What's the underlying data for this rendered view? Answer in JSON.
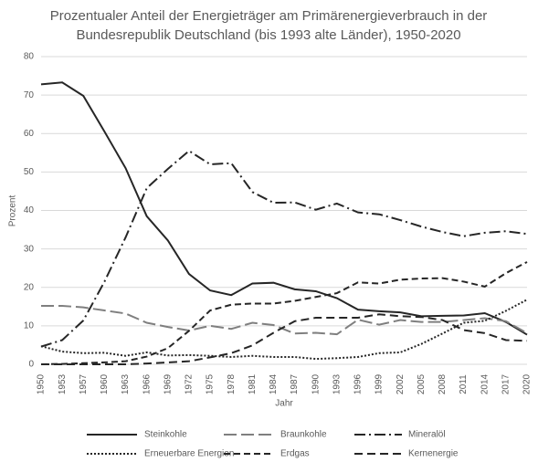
{
  "chart_data": {
    "type": "line",
    "title": [
      "Prozentualer Anteil der Energieträger am Primärenergieverbrauch in der",
      "Bundesrepublik Deutschland (bis 1993 alte Länder), 1950-2020"
    ],
    "x_label": "Jahr",
    "y_label": "Prozent",
    "categories": [
      "1950",
      "1953",
      "1957",
      "1960",
      "1963",
      "1966",
      "1969",
      "1972",
      "1975",
      "1978",
      "1981",
      "1984",
      "1987",
      "1990",
      "1993",
      "1996",
      "1999",
      "2002",
      "2005",
      "2008",
      "2011",
      "2014",
      "2017",
      "2020"
    ],
    "ylim": [
      0,
      80
    ],
    "yticks": [
      0,
      10,
      20,
      30,
      40,
      50,
      60,
      70,
      80
    ],
    "grid": true,
    "series": [
      {
        "name": "Steinkohle",
        "color": "#262626",
        "dash": "none",
        "values": [
          72.8,
          73.3,
          69.8,
          60.5,
          51,
          38.5,
          32.2,
          23.5,
          19.2,
          18,
          21,
          21.2,
          19.5,
          19,
          17.2,
          14.2,
          13.8,
          13.5,
          12.5,
          12.6,
          12.7,
          13.3,
          11,
          7.7
        ]
      },
      {
        "name": "Braunkohle",
        "color": "#7f7f7f",
        "dash": "14 5",
        "values": [
          15.2,
          15.2,
          14.8,
          14,
          13.2,
          10.8,
          9.7,
          8.8,
          10,
          9.2,
          10.8,
          10.2,
          8,
          8.2,
          7.8,
          11.6,
          10.3,
          11.5,
          11,
          11,
          11.5,
          12,
          11.2,
          8.1
        ]
      },
      {
        "name": "Mineralöl",
        "color": "#262626",
        "dash": "12 4 2 4",
        "values": [
          4.6,
          6.3,
          11.4,
          21.5,
          33,
          45.8,
          50.8,
          55.5,
          52,
          52.3,
          44.8,
          42,
          42.1,
          40.2,
          41.8,
          39.5,
          39,
          37.5,
          35.8,
          34.4,
          33.3,
          34.2,
          34.6,
          33.9
        ]
      },
      {
        "name": "Erneuerbare Energien",
        "color": "#262626",
        "dash": "2 2",
        "values": [
          4.7,
          3.3,
          2.9,
          3,
          2.2,
          3.1,
          2.3,
          2.4,
          2.2,
          1.9,
          2.2,
          1.9,
          1.9,
          1.4,
          1.6,
          1.9,
          2.9,
          3.1,
          5.3,
          8,
          10.8,
          11.3,
          13.9,
          16.8
        ]
      },
      {
        "name": "Erdgas",
        "color": "#262626",
        "dash": "7 4",
        "values": [
          0,
          0.1,
          0.3,
          0.5,
          0.8,
          2,
          4.2,
          8.7,
          14,
          15.5,
          15.8,
          15.8,
          16.5,
          17.5,
          18.5,
          21.3,
          21,
          22,
          22.3,
          22.4,
          21.5,
          20.2,
          23.7,
          26.6
        ]
      },
      {
        "name": "Kernenergie",
        "color": "#262626",
        "dash": "9 5",
        "values": [
          0,
          0,
          0,
          0,
          0,
          0.2,
          0.5,
          0.8,
          1.8,
          2.9,
          4.9,
          8.2,
          11.2,
          12.1,
          12.1,
          12.1,
          13,
          12.5,
          12.3,
          11.5,
          8.9,
          8.1,
          6.3,
          6.1
        ]
      }
    ]
  }
}
